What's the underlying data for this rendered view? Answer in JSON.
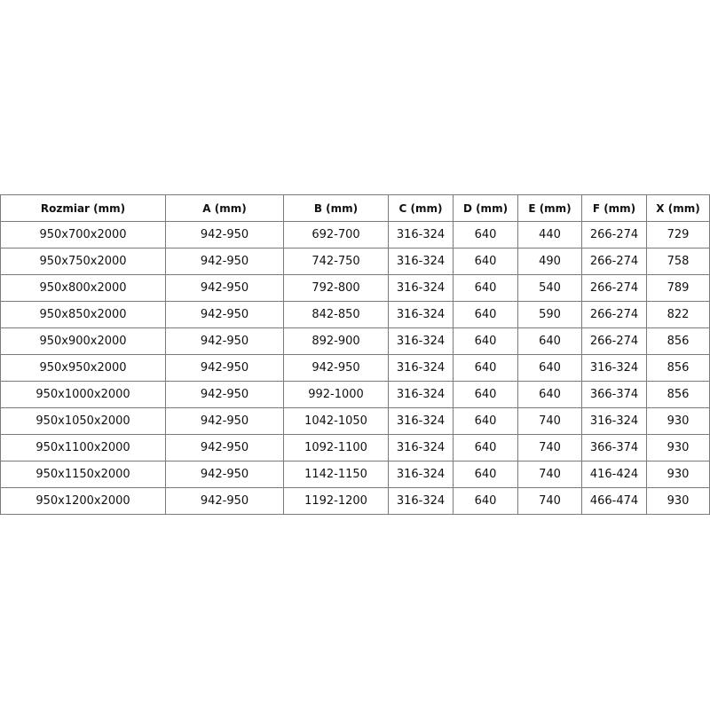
{
  "table": {
    "headers": [
      "Rozmiar (mm)",
      "A (mm)",
      "B (mm)",
      "C (mm)",
      "D (mm)",
      "E (mm)",
      "F (mm)",
      "X (mm)"
    ],
    "rows": [
      [
        "950x700x2000",
        "942-950",
        "692-700",
        "316-324",
        "640",
        "440",
        "266-274",
        "729"
      ],
      [
        "950x750x2000",
        "942-950",
        "742-750",
        "316-324",
        "640",
        "490",
        "266-274",
        "758"
      ],
      [
        "950x800x2000",
        "942-950",
        "792-800",
        "316-324",
        "640",
        "540",
        "266-274",
        "789"
      ],
      [
        "950x850x2000",
        "942-950",
        "842-850",
        "316-324",
        "640",
        "590",
        "266-274",
        "822"
      ],
      [
        "950x900x2000",
        "942-950",
        "892-900",
        "316-324",
        "640",
        "640",
        "266-274",
        "856"
      ],
      [
        "950x950x2000",
        "942-950",
        "942-950",
        "316-324",
        "640",
        "640",
        "316-324",
        "856"
      ],
      [
        "950x1000x2000",
        "942-950",
        "992-1000",
        "316-324",
        "640",
        "640",
        "366-374",
        "856"
      ],
      [
        "950x1050x2000",
        "942-950",
        "1042-1050",
        "316-324",
        "640",
        "740",
        "316-324",
        "930"
      ],
      [
        "950x1100x2000",
        "942-950",
        "1092-1100",
        "316-324",
        "640",
        "740",
        "366-374",
        "930"
      ],
      [
        "950x1150x2000",
        "942-950",
        "1142-1150",
        "316-324",
        "640",
        "740",
        "416-424",
        "930"
      ],
      [
        "950x1200x2000",
        "942-950",
        "1192-1200",
        "316-324",
        "640",
        "740",
        "466-474",
        "930"
      ]
    ]
  }
}
